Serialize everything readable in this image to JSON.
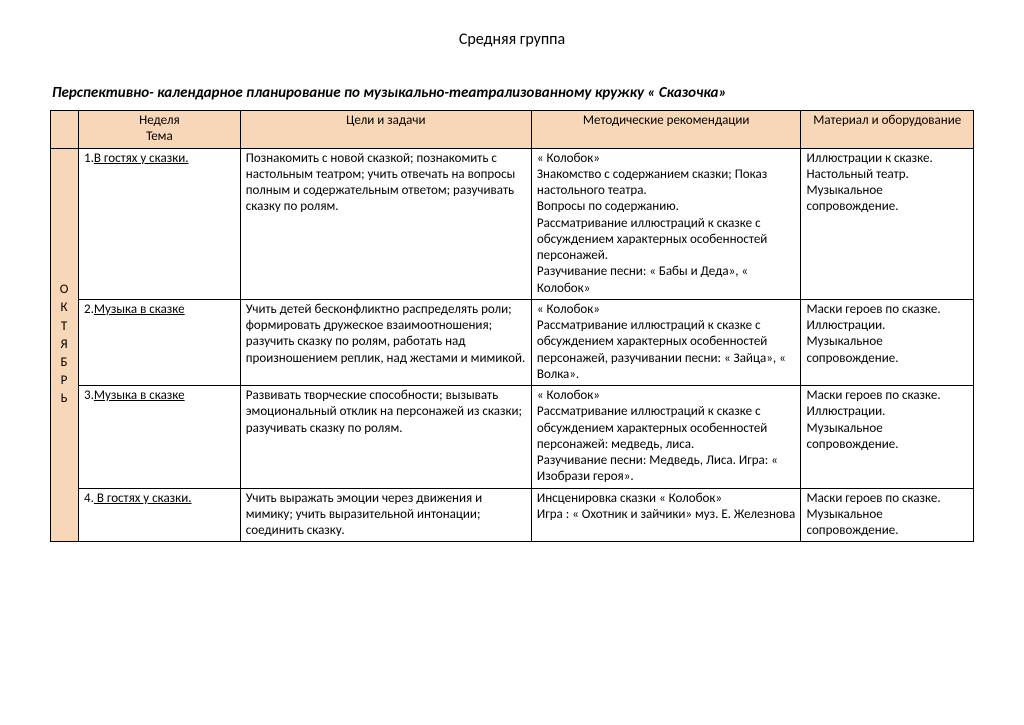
{
  "title": "Средняя группа",
  "subtitle": " Перспективно- календарное планирование по музыкально-театрализованному кружку « Сказочка»",
  "headers": {
    "week": "Неделя\nТема",
    "goals": "Цели и задачи",
    "method": "Методические рекомендации",
    "material": "Материал и оборудование"
  },
  "month_letters": [
    "О",
    "К",
    "Т",
    "Я",
    "Б",
    "Р",
    "Ь"
  ],
  "rows": [
    {
      "week_prefix": "1.",
      "week_text": "В гостях у сказки.",
      "goals": " Познакомить с новой сказкой; познакомить с настольным театром; учить отвечать на вопросы полным и содержательным ответом; разучивать сказку по ролям.",
      "method": "« Колобок»\nЗнакомство с содержанием сказки; Показ настольного театра.\nВопросы по содержанию.\nРассматривание иллюстраций к сказке с обсуждением характерных особенностей персонажей.\nРазучивание песни: « Бабы и Деда», « Колобок»",
      "material": "Иллюстрации к сказке. Настольный театр. Музыкальное сопровождение."
    },
    {
      "week_prefix": "2.",
      "week_text": "Музыка в сказке",
      "goals": "Учить детей бесконфликтно распределять роли; формировать дружеское взаимоотношения; разучить сказку по ролям, работать над произношением реплик, над жестами и мимикой.",
      "method": "« Колобок»\nРассматривание иллюстраций к сказке с обсуждением характерных особенностей персонажей, разучивании песни: « Зайца», « Волка».",
      "material": "Маски героев по сказке.\nИллюстрации.\nМузыкальное сопровождение."
    },
    {
      "week_prefix": "3.",
      "week_text": "Музыка в сказке",
      "goals": "Развивать творческие способности; вызывать эмоциональный отклик на персонажей из сказки; разучивать сказку по ролям.",
      "method": "« Колобок»\nРассматривание иллюстраций к сказке с обсуждением характерных особенностей персонажей: медведь, лиса.\nРазучивание песни: Медведь, Лиса. Игра: « Изобрази героя».",
      "material": "Маски героев по сказке.\nИллюстрации.\nМузыкальное сопровождение."
    },
    {
      "week_prefix": "4.",
      "week_text": " В гостях у сказки.",
      "goals": "Учить выражать эмоции через движения и мимику; учить выразительной интонации; соединить сказку.",
      "method": "Инсценировка сказки « Колобок»\nИгра : « Охотник и зайчики» муз. Е. Железнова",
      "material": "Маски героев по сказке.\nМузыкальное сопровождение."
    }
  ]
}
